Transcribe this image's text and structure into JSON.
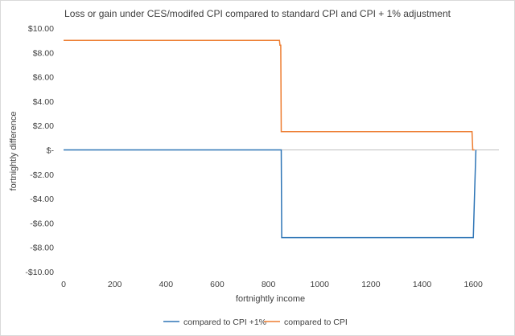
{
  "chart_data": {
    "type": "line",
    "title": "Loss or gain under CES/modifed CPI compared to standard CPI and CPI + 1% adjustment",
    "xlabel": "fortnightly income",
    "ylabel": "fortnightly difference",
    "xlim": [
      0,
      1700
    ],
    "ylim": [
      -10,
      10
    ],
    "x_ticks": [
      0,
      200,
      400,
      600,
      800,
      1000,
      1200,
      1400,
      1600
    ],
    "y_ticks": [
      {
        "value": 10,
        "label": "$10.00"
      },
      {
        "value": 8,
        "label": "$8.00"
      },
      {
        "value": 6,
        "label": "$6.00"
      },
      {
        "value": 4,
        "label": "$4.00"
      },
      {
        "value": 2,
        "label": "$2.00"
      },
      {
        "value": 0,
        "label": "$-"
      },
      {
        "value": -2,
        "label": "-$2.00"
      },
      {
        "value": -4,
        "label": "-$4.00"
      },
      {
        "value": -6,
        "label": "-$6.00"
      },
      {
        "value": -8,
        "label": "-$8.00"
      },
      {
        "value": -10,
        "label": "-$10.00"
      }
    ],
    "grid": false,
    "legend_position": "bottom",
    "series": [
      {
        "name": "compared to CPI +1%",
        "color": "#2E75B6",
        "points": [
          [
            0,
            0
          ],
          [
            850,
            0
          ],
          [
            852,
            -7.2
          ],
          [
            1600,
            -7.2
          ],
          [
            1605,
            -3.5
          ],
          [
            1610,
            0
          ]
        ]
      },
      {
        "name": "compared to CPI",
        "color": "#ED7D31",
        "points": [
          [
            0,
            9
          ],
          [
            843,
            9
          ],
          [
            845,
            8.6
          ],
          [
            848,
            8.6
          ],
          [
            850,
            1.5
          ],
          [
            1595,
            1.5
          ],
          [
            1598,
            0
          ],
          [
            1605,
            0
          ]
        ]
      }
    ]
  }
}
